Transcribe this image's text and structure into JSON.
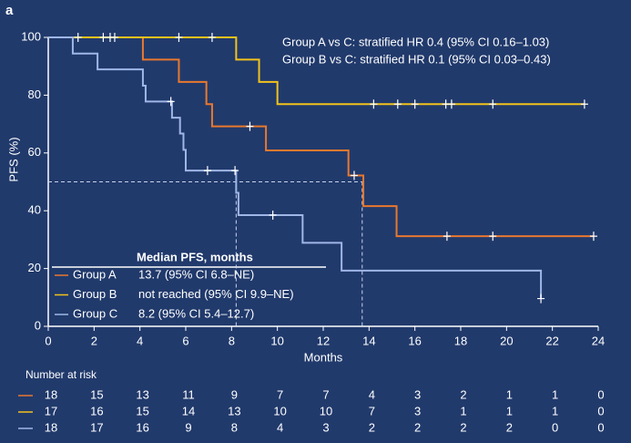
{
  "chart_data": {
    "type": "step",
    "panel_label": "a",
    "xlabel": "Months",
    "ylabel": "PFS (%)",
    "xlim": [
      0,
      24
    ],
    "xticks": [
      0,
      2,
      4,
      6,
      8,
      10,
      12,
      14,
      16,
      18,
      20,
      22,
      24
    ],
    "ylim": [
      0,
      100
    ],
    "yticks": [
      0,
      20,
      40,
      60,
      80,
      100
    ],
    "annotations": [
      "Group A vs C: stratified HR 0.4 (95% CI 0.16–1.03)",
      "Group B vs C: stratified HR 0.1 (95% CI 0.03–0.43)"
    ],
    "reference_y": 50,
    "legend_title": "Median PFS, months",
    "series": [
      {
        "name": "Group A",
        "color": "#e8782e",
        "median_label": "13.7 (95% CI 6.8–NE)",
        "median": 13.7,
        "x": [
          0,
          4.13,
          5.7,
          6.9,
          7.15,
          9.5,
          13.1,
          13.75,
          15.2,
          23.8
        ],
        "values": [
          100,
          92.3,
          84.6,
          76.9,
          69.2,
          60.9,
          52.2,
          41.6,
          31.2,
          31.2
        ],
        "censor_x": [
          8.8,
          13.35,
          17.4,
          19.4,
          23.8
        ],
        "at_risk": [
          18,
          15,
          13,
          11,
          9,
          7,
          7,
          4,
          3,
          2,
          1,
          1,
          0
        ]
      },
      {
        "name": "Group B",
        "color": "#f2c21b",
        "median_label": "not reached (95% CI 9.9–NE)",
        "x": [
          0,
          8.2,
          9.2,
          10.0,
          23.4
        ],
        "values": [
          100,
          92.3,
          84.6,
          76.9,
          76.9
        ],
        "censor_x": [
          1.3,
          2.4,
          2.7,
          2.9,
          5.7,
          7.15,
          14.2,
          15.25,
          16.0,
          17.35,
          17.6,
          19.4,
          23.4
        ],
        "at_risk": [
          17,
          16,
          15,
          14,
          13,
          10,
          10,
          7,
          3,
          1,
          1,
          1,
          0
        ]
      },
      {
        "name": "Group C",
        "color": "#9fb7e6",
        "median_label": "8.2 (95% CI 5.4–12.7)",
        "median": 8.2,
        "x": [
          0,
          1.07,
          2.15,
          4.13,
          4.25,
          5.4,
          5.75,
          5.9,
          6.0,
          8.2,
          8.3,
          11.1,
          12.8,
          21.5
        ],
        "values": [
          100,
          94.4,
          88.9,
          83.3,
          77.8,
          72.2,
          66.7,
          61.1,
          53.9,
          46.2,
          38.5,
          28.9,
          19.3,
          9.6
        ],
        "censor_x": [
          5.35,
          6.95,
          8.15,
          9.8,
          21.5
        ],
        "at_risk": [
          18,
          17,
          16,
          9,
          8,
          4,
          3,
          2,
          2,
          2,
          2,
          0,
          0
        ]
      }
    ],
    "risk_title": "Number at risk"
  }
}
